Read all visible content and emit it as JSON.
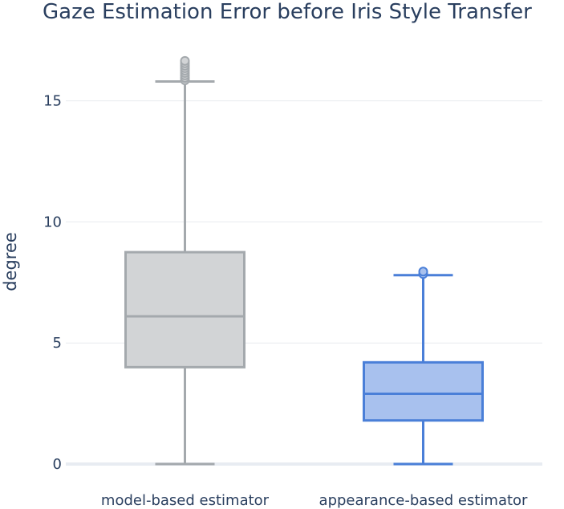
{
  "chart_data": {
    "type": "box",
    "title": "Gaze Estimation Error before Iris Style Transfer",
    "xlabel": "",
    "ylabel": "degree",
    "ylim": [
      -0.2,
      16.8
    ],
    "yticks": [
      0,
      5,
      10,
      15
    ],
    "categories": [
      "model-based estimator",
      "appearance-based estimator"
    ],
    "series": [
      {
        "category": "model-based estimator",
        "min": 0,
        "q1": 4.0,
        "median": 6.1,
        "q3": 8.75,
        "max": 15.8,
        "outliers": [
          15.85,
          15.95,
          16.05,
          16.15,
          16.25,
          16.35,
          16.45,
          16.55,
          16.65
        ],
        "color": "#a4a9ad",
        "fill": "#d2d4d6"
      },
      {
        "category": "appearance-based estimator",
        "min": 0,
        "q1": 1.8,
        "median": 2.9,
        "q3": 4.2,
        "max": 7.8,
        "outliers": [
          7.85,
          7.95
        ],
        "color": "#4a7fd8",
        "fill": "#a8c1ee"
      }
    ],
    "grid": true,
    "legend": "none"
  }
}
